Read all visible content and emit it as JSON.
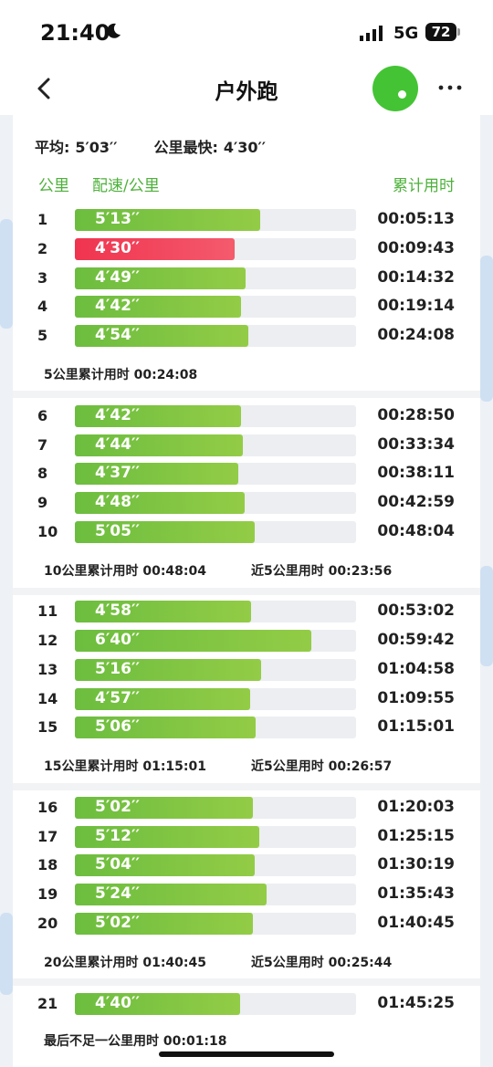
{
  "status_bar": {
    "time": "21:40",
    "network": "5G",
    "battery": "72",
    "icons": [
      "moon-icon",
      "signal-icon",
      "battery-icon"
    ]
  },
  "nav": {
    "title": "户外跑",
    "back_icon": "chevron-left-icon",
    "more_icon": "more-dots-icon",
    "status_color": "#44c434"
  },
  "summary": {
    "avg_label": "平均:",
    "avg_value": "5′03′′",
    "fastest_label": "公里最快:",
    "fastest_value": "4′30′′"
  },
  "columns": {
    "km": "公里",
    "pace": "配速/公里",
    "cumulative": "累计用时"
  },
  "colors": {
    "accent": "#4db13a",
    "bar": "#7cc443",
    "fastest_bar": "#f0344f",
    "track": "#eceef1"
  },
  "pace_scale_max_seconds": 476,
  "rows": [
    {
      "km": "1",
      "pace": "5′13′′",
      "pace_seconds": 313,
      "cumulative": "00:05:13",
      "fastest": false
    },
    {
      "km": "2",
      "pace": "4′30′′",
      "pace_seconds": 270,
      "cumulative": "00:09:43",
      "fastest": true
    },
    {
      "km": "3",
      "pace": "4′49′′",
      "pace_seconds": 289,
      "cumulative": "00:14:32",
      "fastest": false
    },
    {
      "km": "4",
      "pace": "4′42′′",
      "pace_seconds": 282,
      "cumulative": "00:19:14",
      "fastest": false
    },
    {
      "km": "5",
      "pace": "4′54′′",
      "pace_seconds": 294,
      "cumulative": "00:24:08",
      "fastest": false
    },
    {
      "km": "6",
      "pace": "4′42′′",
      "pace_seconds": 282,
      "cumulative": "00:28:50",
      "fastest": false
    },
    {
      "km": "7",
      "pace": "4′44′′",
      "pace_seconds": 284,
      "cumulative": "00:33:34",
      "fastest": false
    },
    {
      "km": "8",
      "pace": "4′37′′",
      "pace_seconds": 277,
      "cumulative": "00:38:11",
      "fastest": false
    },
    {
      "km": "9",
      "pace": "4′48′′",
      "pace_seconds": 288,
      "cumulative": "00:42:59",
      "fastest": false
    },
    {
      "km": "10",
      "pace": "5′05′′",
      "pace_seconds": 305,
      "cumulative": "00:48:04",
      "fastest": false
    },
    {
      "km": "11",
      "pace": "4′58′′",
      "pace_seconds": 298,
      "cumulative": "00:53:02",
      "fastest": false
    },
    {
      "km": "12",
      "pace": "6′40′′",
      "pace_seconds": 400,
      "cumulative": "00:59:42",
      "fastest": false
    },
    {
      "km": "13",
      "pace": "5′16′′",
      "pace_seconds": 316,
      "cumulative": "01:04:58",
      "fastest": false
    },
    {
      "km": "14",
      "pace": "4′57′′",
      "pace_seconds": 297,
      "cumulative": "01:09:55",
      "fastest": false
    },
    {
      "km": "15",
      "pace": "5′06′′",
      "pace_seconds": 306,
      "cumulative": "01:15:01",
      "fastest": false
    },
    {
      "km": "16",
      "pace": "5′02′′",
      "pace_seconds": 302,
      "cumulative": "01:20:03",
      "fastest": false
    },
    {
      "km": "17",
      "pace": "5′12′′",
      "pace_seconds": 312,
      "cumulative": "01:25:15",
      "fastest": false
    },
    {
      "km": "18",
      "pace": "5′04′′",
      "pace_seconds": 304,
      "cumulative": "01:30:19",
      "fastest": false
    },
    {
      "km": "19",
      "pace": "5′24′′",
      "pace_seconds": 324,
      "cumulative": "01:35:43",
      "fastest": false
    },
    {
      "km": "20",
      "pace": "5′02′′",
      "pace_seconds": 302,
      "cumulative": "01:40:45",
      "fastest": false
    },
    {
      "km": "21",
      "pace": "4′40′′",
      "pace_seconds": 280,
      "cumulative": "01:45:25",
      "fastest": false
    }
  ],
  "notes": {
    "n5": "5公里累计用时 00:24:08",
    "n10": "10公里累计用时 00:48:04",
    "n10_last5": "近5公里用时 00:23:56",
    "n15": "15公里累计用时 01:15:01",
    "n15_last5": "近5公里用时 00:26:57",
    "n20": "20公里累计用时 01:40:45",
    "n20_last5": "近5公里用时 00:25:44",
    "remainder": "最后不足一公里用时 00:01:18"
  }
}
